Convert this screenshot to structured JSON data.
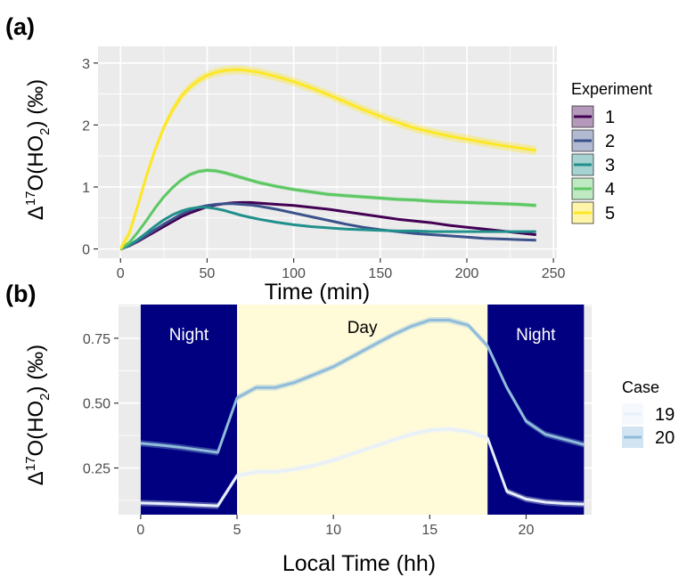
{
  "chart_data": [
    {
      "panel_label": "(a)",
      "type": "line",
      "xlabel": "Time (min)",
      "ylabel": {
        "prefix": "Δ",
        "sup": "17",
        "mid": "O(HO",
        "sub": "2",
        "suffix": ") (‰)"
      },
      "xlim": [
        -13,
        252
      ],
      "ylim": [
        -0.15,
        3.27
      ],
      "xticks": [
        0,
        50,
        100,
        150,
        200,
        250
      ],
      "yticks": [
        0,
        1,
        2,
        3
      ],
      "grid": true,
      "background": "#ebebeb",
      "legend": {
        "title": "Experiment",
        "position": "right"
      },
      "x": [
        0,
        5,
        10,
        15,
        20,
        25,
        30,
        35,
        40,
        45,
        50,
        55,
        60,
        65,
        70,
        75,
        80,
        90,
        100,
        110,
        120,
        130,
        140,
        150,
        160,
        170,
        180,
        190,
        200,
        210,
        220,
        230,
        240
      ],
      "series": [
        {
          "name": "1",
          "color": "#440154",
          "values": [
            0,
            0.05,
            0.12,
            0.2,
            0.28,
            0.36,
            0.44,
            0.52,
            0.58,
            0.63,
            0.68,
            0.71,
            0.73,
            0.745,
            0.75,
            0.75,
            0.74,
            0.72,
            0.7,
            0.67,
            0.64,
            0.6,
            0.56,
            0.52,
            0.48,
            0.45,
            0.42,
            0.38,
            0.35,
            0.32,
            0.29,
            0.26,
            0.23
          ]
        },
        {
          "name": "2",
          "color": "#3b528b",
          "values": [
            0,
            0.05,
            0.13,
            0.22,
            0.31,
            0.4,
            0.48,
            0.56,
            0.62,
            0.67,
            0.7,
            0.72,
            0.73,
            0.73,
            0.72,
            0.71,
            0.69,
            0.64,
            0.58,
            0.52,
            0.46,
            0.4,
            0.35,
            0.31,
            0.28,
            0.25,
            0.23,
            0.21,
            0.19,
            0.17,
            0.16,
            0.15,
            0.14
          ]
        },
        {
          "name": "3",
          "color": "#21908c",
          "values": [
            0,
            0.06,
            0.15,
            0.26,
            0.37,
            0.47,
            0.55,
            0.61,
            0.65,
            0.67,
            0.67,
            0.65,
            0.62,
            0.58,
            0.54,
            0.51,
            0.48,
            0.43,
            0.39,
            0.36,
            0.34,
            0.32,
            0.31,
            0.3,
            0.29,
            0.29,
            0.28,
            0.28,
            0.28,
            0.28,
            0.28,
            0.28,
            0.28
          ]
        },
        {
          "name": "4",
          "color": "#5dc863",
          "values": [
            0,
            0.1,
            0.27,
            0.46,
            0.66,
            0.84,
            0.99,
            1.11,
            1.2,
            1.25,
            1.27,
            1.26,
            1.23,
            1.19,
            1.15,
            1.11,
            1.07,
            1.01,
            0.96,
            0.92,
            0.88,
            0.86,
            0.84,
            0.82,
            0.8,
            0.79,
            0.77,
            0.76,
            0.75,
            0.74,
            0.73,
            0.72,
            0.7
          ]
        },
        {
          "name": "5",
          "color": "#fde725",
          "values": [
            0,
            0.25,
            0.7,
            1.18,
            1.6,
            1.96,
            2.24,
            2.46,
            2.61,
            2.72,
            2.8,
            2.85,
            2.88,
            2.89,
            2.89,
            2.87,
            2.85,
            2.78,
            2.7,
            2.6,
            2.49,
            2.37,
            2.25,
            2.14,
            2.04,
            1.95,
            1.88,
            1.82,
            1.77,
            1.72,
            1.67,
            1.63,
            1.59
          ]
        }
      ]
    },
    {
      "panel_label": "(b)",
      "type": "line",
      "xlabel": "Local Time (hh)",
      "ylabel": {
        "prefix": "Δ",
        "sup": "17",
        "mid": "O(HO",
        "sub": "2",
        "suffix": ") (‰)"
      },
      "xlim": [
        -1.15,
        23.4
      ],
      "ylim": [
        0.07,
        0.88
      ],
      "xticks": [
        0,
        5,
        10,
        15,
        20
      ],
      "yticks": [
        0.25,
        0.5,
        0.75
      ],
      "ytick_labels": [
        "0.25",
        "0.50",
        "0.75"
      ],
      "grid": true,
      "background": "#ebebeb",
      "night_color": "#000080",
      "day_color": "#fffbd9",
      "regions": [
        {
          "label": "Night",
          "start": 0,
          "end": 5
        },
        {
          "label": "Day",
          "start": 5,
          "end": 18
        },
        {
          "label": "Night",
          "start": 18,
          "end": 23
        }
      ],
      "legend": {
        "title": "Case",
        "position": "right"
      },
      "x": [
        0,
        1,
        2,
        3,
        4,
        5,
        6,
        7,
        8,
        9,
        10,
        11,
        12,
        13,
        14,
        15,
        16,
        17,
        18,
        19,
        20,
        21,
        22,
        23
      ],
      "series": [
        {
          "name": "19",
          "color": "#e7f0fa",
          "values": [
            0.115,
            0.113,
            0.11,
            0.107,
            0.104,
            0.22,
            0.235,
            0.235,
            0.245,
            0.26,
            0.28,
            0.305,
            0.33,
            0.355,
            0.38,
            0.395,
            0.4,
            0.39,
            0.365,
            0.16,
            0.13,
            0.118,
            0.113,
            0.11
          ]
        },
        {
          "name": "20",
          "color": "#8fbcdb",
          "values": [
            0.345,
            0.338,
            0.33,
            0.32,
            0.31,
            0.52,
            0.56,
            0.56,
            0.58,
            0.61,
            0.64,
            0.68,
            0.72,
            0.76,
            0.795,
            0.82,
            0.82,
            0.8,
            0.72,
            0.56,
            0.43,
            0.38,
            0.36,
            0.34
          ]
        }
      ]
    }
  ]
}
